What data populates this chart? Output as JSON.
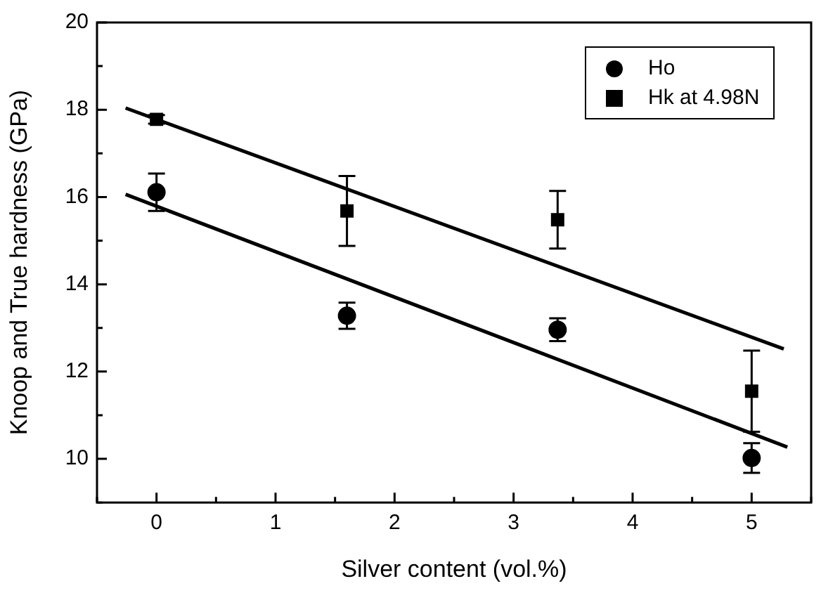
{
  "chart_data": {
    "type": "scatter",
    "xlabel": "Silver content (vol.%)",
    "ylabel": "Knoop and True hardness (GPa)",
    "xlim": [
      -0.5,
      5.5
    ],
    "ylim": [
      9,
      20
    ],
    "xticks": [
      {
        "value": -0.5,
        "label": null
      },
      0,
      {
        "value": 0.5,
        "label": null
      },
      1,
      {
        "value": 1.5,
        "label": null
      },
      2,
      {
        "value": 2.5,
        "label": null
      },
      3,
      {
        "value": 3.5,
        "label": null
      },
      4,
      {
        "value": 4.5,
        "label": null
      },
      5,
      {
        "value": 5.5,
        "label": null
      }
    ],
    "yticks": [
      {
        "value": 9,
        "label": null
      },
      10,
      {
        "value": 11,
        "label": null
      },
      12,
      {
        "value": 13,
        "label": null
      },
      14,
      {
        "value": 15,
        "label": null
      },
      16,
      {
        "value": 17,
        "label": null
      },
      18,
      {
        "value": 19,
        "label": null
      },
      20
    ],
    "grid": false,
    "legend": "top right",
    "series": [
      {
        "name": "Ho",
        "marker": "circle",
        "color": "#000000",
        "x": [
          0,
          1.6,
          3.37,
          5
        ],
        "values": [
          16.11,
          13.28,
          12.96,
          10.02
        ],
        "errors": [
          0.43,
          0.3,
          0.26,
          0.34
        ]
      },
      {
        "name": "Hk at 4.98N",
        "marker": "square",
        "color": "#000000",
        "x": [
          0,
          1.6,
          3.37,
          5
        ],
        "values": [
          17.78,
          15.68,
          15.48,
          11.55
        ],
        "errors": [
          0.1,
          0.8,
          0.66,
          0.93
        ]
      },
      {
        "type": "line",
        "marker": "none",
        "line_style": "solid",
        "color": "#000000",
        "x": [
          -0.26,
          5.3
        ],
        "values": [
          16.06,
          10.27
        ]
      },
      {
        "type": "line",
        "marker": "none",
        "line_style": "solid",
        "color": "#000000",
        "x": [
          -0.26,
          5.27
        ],
        "values": [
          18.04,
          12.52
        ]
      }
    ]
  }
}
